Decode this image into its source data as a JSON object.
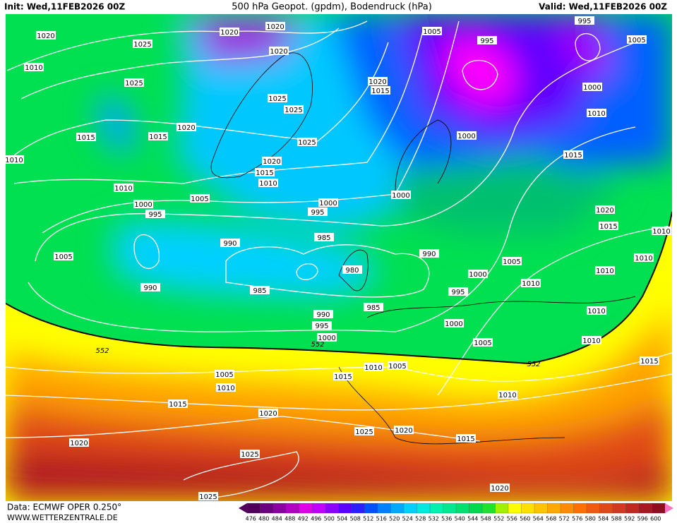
{
  "header": {
    "init": "Init: Wed,11FEB2026 00Z",
    "title": "500 hPa Geopot. (gpdm), Bodendruck (hPa)",
    "valid": "Valid: Wed,11FEB2026 00Z"
  },
  "footer": {
    "source": "Data: ECMWF OPER 0.250°",
    "site": "WWW.WETTERZENTRALE.DE"
  },
  "isobar_labels": [
    "1020",
    "1025",
    "1020",
    "1020",
    "1020",
    "1005",
    "995",
    "995",
    "1005",
    "1010",
    "1025",
    "1025",
    "1025",
    "1020",
    "1015",
    "1015",
    "1015",
    "1020",
    "1025",
    "1000",
    "1010",
    "1000",
    "1015",
    "1010",
    "1020",
    "1015",
    "1010",
    "1010",
    "1005",
    "1000",
    "1000",
    "1000",
    "995",
    "995",
    "1020",
    "1015",
    "1010",
    "990",
    "985",
    "990",
    "1005",
    "1005",
    "1000",
    "980",
    "1010",
    "1010",
    "1010",
    "990",
    "985",
    "995",
    "985",
    "1010",
    "990",
    "995",
    "1000",
    "1000",
    "1005",
    "1010",
    "1005",
    "1010",
    "1005",
    "1015",
    "1010",
    "1010",
    "1015",
    "1015",
    "1020",
    "1020",
    "1025",
    "1020",
    "1015",
    "1025",
    "1025",
    "1020"
  ],
  "contour_552_labels": [
    "552",
    "552",
    "552"
  ],
  "scale": {
    "labels": [
      476,
      480,
      484,
      488,
      492,
      496,
      500,
      504,
      508,
      512,
      516,
      520,
      524,
      528,
      532,
      536,
      540,
      544,
      548,
      552,
      556,
      560,
      564,
      568,
      572,
      576,
      580,
      584,
      588,
      592,
      596,
      600
    ],
    "colors": [
      "#50005a",
      "#6a0080",
      "#8a00a0",
      "#b000c0",
      "#e000e8",
      "#c000ff",
      "#8c00ff",
      "#5a00ff",
      "#2a20ff",
      "#0050ff",
      "#0080ff",
      "#00a8ff",
      "#00d0ff",
      "#00e8e0",
      "#00f0b0",
      "#00e890",
      "#00e070",
      "#00d850",
      "#20e030",
      "#a0f000",
      "#ffff00",
      "#ffe000",
      "#ffc400",
      "#ffa800",
      "#ff8c00",
      "#ff7000",
      "#f05a10",
      "#e04818",
      "#d03a20",
      "#c02820",
      "#a81822",
      "#900c20"
    ]
  }
}
